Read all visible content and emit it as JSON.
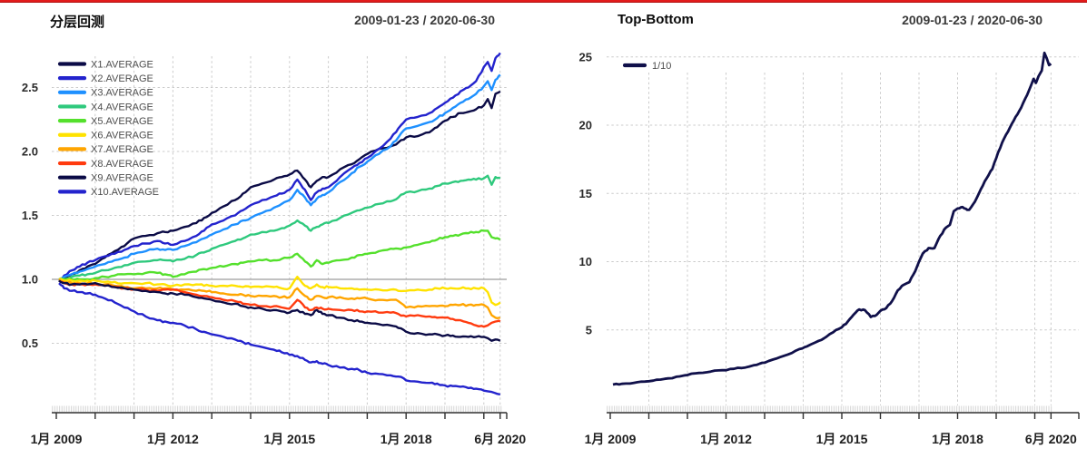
{
  "page": {
    "top_border_color": "#e31b1b",
    "background": "#ffffff",
    "grid_color": "#cbcbcb",
    "axis_color": "#2f2f2f"
  },
  "chart_data": [
    {
      "type": "line",
      "title": "分层回测",
      "date_range": "2009-01-23 / 2020-06-30",
      "legend_position": "top-left",
      "grid": true,
      "x_range_years": [
        2009.06,
        2020.5
      ],
      "x_end": 2020.42,
      "ylim": [
        0.05,
        2.78
      ],
      "baseline": {
        "value": 1.0,
        "color": "#9c9c9c"
      },
      "x_grid_years": [
        2010,
        2011,
        2012,
        2013,
        2014,
        2015,
        2016,
        2017,
        2018,
        2019,
        2020,
        2020.42
      ],
      "x_tick_labels": [
        {
          "label": "1月 2009",
          "year": 2009
        },
        {
          "label": "1月 2012",
          "year": 2012
        },
        {
          "label": "1月 2015",
          "year": 2015
        },
        {
          "label": "1月 2018",
          "year": 2018
        },
        {
          "label": "6月 2020",
          "year": 2020.42
        }
      ],
      "y_ticks": [
        {
          "value": 0.5,
          "label": "0.5"
        },
        {
          "value": 1.0,
          "label": "1.0"
        },
        {
          "value": 1.5,
          "label": "1.5"
        },
        {
          "value": 2.0,
          "label": "2.0"
        },
        {
          "value": 2.5,
          "label": "2.5"
        }
      ],
      "x": [
        2009.07,
        2009.2,
        2009.4,
        2009.6,
        2009.8,
        2010.0,
        2010.25,
        2010.5,
        2010.75,
        2011.0,
        2011.3,
        2011.6,
        2011.8,
        2012.0,
        2012.3,
        2012.6,
        2012.8,
        2013.0,
        2013.3,
        2013.6,
        2013.8,
        2014.0,
        2014.3,
        2014.6,
        2014.8,
        2015.0,
        2015.2,
        2015.4,
        2015.55,
        2015.7,
        2015.85,
        2016.0,
        2016.3,
        2016.6,
        2016.8,
        2017.0,
        2017.3,
        2017.6,
        2017.8,
        2018.0,
        2018.3,
        2018.6,
        2018.8,
        2019.0,
        2019.2,
        2019.4,
        2019.6,
        2019.8,
        2020.0,
        2020.1,
        2020.2,
        2020.3,
        2020.42
      ],
      "series": [
        {
          "name": "X1.AVERAGE",
          "color": "#0b0b46",
          "y": [
            1.0,
            1.01,
            1.04,
            1.07,
            1.1,
            1.12,
            1.17,
            1.22,
            1.26,
            1.32,
            1.34,
            1.36,
            1.37,
            1.38,
            1.41,
            1.44,
            1.48,
            1.52,
            1.57,
            1.62,
            1.67,
            1.72,
            1.75,
            1.78,
            1.8,
            1.82,
            1.85,
            1.78,
            1.72,
            1.77,
            1.8,
            1.8,
            1.86,
            1.9,
            1.94,
            1.98,
            2.02,
            2.04,
            2.07,
            2.11,
            2.12,
            2.15,
            2.19,
            2.24,
            2.27,
            2.3,
            2.31,
            2.33,
            2.36,
            2.41,
            2.34,
            2.45,
            2.47
          ]
        },
        {
          "name": "X2.AVERAGE",
          "color": "#2323cd",
          "y": [
            0.98,
            1.03,
            1.07,
            1.1,
            1.13,
            1.15,
            1.18,
            1.2,
            1.23,
            1.26,
            1.28,
            1.3,
            1.28,
            1.27,
            1.3,
            1.34,
            1.38,
            1.43,
            1.46,
            1.5,
            1.54,
            1.58,
            1.62,
            1.65,
            1.67,
            1.7,
            1.78,
            1.7,
            1.62,
            1.68,
            1.71,
            1.72,
            1.8,
            1.87,
            1.91,
            1.95,
            2.02,
            2.1,
            2.18,
            2.25,
            2.27,
            2.3,
            2.34,
            2.38,
            2.42,
            2.47,
            2.5,
            2.55,
            2.66,
            2.7,
            2.63,
            2.73,
            2.77
          ]
        },
        {
          "name": "X3.AVERAGE",
          "color": "#1e90ff",
          "y": [
            0.98,
            1.02,
            1.04,
            1.06,
            1.08,
            1.1,
            1.12,
            1.15,
            1.17,
            1.2,
            1.22,
            1.24,
            1.23,
            1.23,
            1.26,
            1.29,
            1.32,
            1.35,
            1.39,
            1.43,
            1.46,
            1.48,
            1.52,
            1.56,
            1.59,
            1.62,
            1.7,
            1.64,
            1.58,
            1.63,
            1.66,
            1.68,
            1.76,
            1.83,
            1.88,
            1.92,
            1.98,
            2.04,
            2.11,
            2.18,
            2.2,
            2.23,
            2.26,
            2.3,
            2.34,
            2.38,
            2.41,
            2.45,
            2.51,
            2.55,
            2.48,
            2.56,
            2.6
          ]
        },
        {
          "name": "X4.AVERAGE",
          "color": "#2fc97d",
          "y": [
            1.0,
            1.0,
            1.02,
            1.03,
            1.04,
            1.05,
            1.07,
            1.09,
            1.11,
            1.13,
            1.14,
            1.15,
            1.15,
            1.14,
            1.16,
            1.19,
            1.21,
            1.24,
            1.27,
            1.3,
            1.32,
            1.35,
            1.37,
            1.38,
            1.4,
            1.42,
            1.46,
            1.42,
            1.38,
            1.41,
            1.43,
            1.44,
            1.48,
            1.52,
            1.54,
            1.56,
            1.59,
            1.61,
            1.64,
            1.68,
            1.69,
            1.71,
            1.73,
            1.75,
            1.76,
            1.77,
            1.78,
            1.78,
            1.79,
            1.81,
            1.74,
            1.8,
            1.79
          ]
        },
        {
          "name": "X5.AVERAGE",
          "color": "#54e02c",
          "y": [
            1.0,
            1.0,
            1.0,
            1.0,
            1.0,
            1.01,
            1.02,
            1.03,
            1.04,
            1.04,
            1.05,
            1.05,
            1.04,
            1.02,
            1.04,
            1.06,
            1.08,
            1.09,
            1.1,
            1.12,
            1.13,
            1.14,
            1.15,
            1.15,
            1.16,
            1.17,
            1.2,
            1.14,
            1.1,
            1.15,
            1.12,
            1.13,
            1.15,
            1.17,
            1.19,
            1.2,
            1.22,
            1.24,
            1.24,
            1.25,
            1.27,
            1.29,
            1.31,
            1.33,
            1.34,
            1.35,
            1.36,
            1.37,
            1.38,
            1.38,
            1.33,
            1.32,
            1.31
          ]
        },
        {
          "name": "X6.AVERAGE",
          "color": "#ffe200",
          "y": [
            1.0,
            0.99,
            0.99,
            0.99,
            0.99,
            0.99,
            0.98,
            0.98,
            0.97,
            0.97,
            0.97,
            0.96,
            0.96,
            0.95,
            0.96,
            0.96,
            0.95,
            0.95,
            0.95,
            0.95,
            0.94,
            0.94,
            0.94,
            0.94,
            0.93,
            0.93,
            1.02,
            0.95,
            0.93,
            0.96,
            0.94,
            0.94,
            0.93,
            0.93,
            0.92,
            0.92,
            0.92,
            0.92,
            0.91,
            0.91,
            0.92,
            0.92,
            0.93,
            0.93,
            0.93,
            0.93,
            0.93,
            0.93,
            0.93,
            0.9,
            0.82,
            0.8,
            0.82
          ]
        },
        {
          "name": "X7.AVERAGE",
          "color": "#ffa500",
          "y": [
            1.0,
            0.98,
            0.97,
            0.97,
            0.97,
            0.97,
            0.96,
            0.95,
            0.94,
            0.93,
            0.93,
            0.93,
            0.93,
            0.92,
            0.92,
            0.91,
            0.91,
            0.9,
            0.89,
            0.88,
            0.88,
            0.87,
            0.87,
            0.87,
            0.86,
            0.86,
            0.93,
            0.87,
            0.84,
            0.87,
            0.86,
            0.86,
            0.86,
            0.85,
            0.85,
            0.85,
            0.84,
            0.84,
            0.83,
            0.78,
            0.79,
            0.79,
            0.79,
            0.79,
            0.8,
            0.8,
            0.8,
            0.8,
            0.8,
            0.78,
            0.72,
            0.7,
            0.7
          ]
        },
        {
          "name": "X8.AVERAGE",
          "color": "#ff3b0f",
          "y": [
            0.99,
            0.97,
            0.96,
            0.96,
            0.96,
            0.96,
            0.95,
            0.94,
            0.93,
            0.92,
            0.92,
            0.91,
            0.92,
            0.92,
            0.9,
            0.88,
            0.87,
            0.86,
            0.84,
            0.83,
            0.81,
            0.8,
            0.79,
            0.79,
            0.78,
            0.77,
            0.84,
            0.78,
            0.76,
            0.78,
            0.77,
            0.77,
            0.76,
            0.76,
            0.75,
            0.75,
            0.74,
            0.74,
            0.73,
            0.71,
            0.72,
            0.71,
            0.7,
            0.7,
            0.69,
            0.68,
            0.66,
            0.64,
            0.63,
            0.64,
            0.66,
            0.67,
            0.67
          ]
        },
        {
          "name": "X9.AVERAGE",
          "color": "#0b0b46",
          "y": [
            0.99,
            0.97,
            0.96,
            0.96,
            0.96,
            0.97,
            0.95,
            0.94,
            0.93,
            0.92,
            0.91,
            0.9,
            0.89,
            0.89,
            0.88,
            0.86,
            0.85,
            0.84,
            0.82,
            0.81,
            0.79,
            0.78,
            0.77,
            0.76,
            0.75,
            0.74,
            0.76,
            0.73,
            0.72,
            0.76,
            0.73,
            0.72,
            0.7,
            0.68,
            0.67,
            0.66,
            0.65,
            0.64,
            0.62,
            0.59,
            0.58,
            0.57,
            0.57,
            0.56,
            0.56,
            0.55,
            0.55,
            0.55,
            0.55,
            0.54,
            0.52,
            0.53,
            0.52
          ]
        },
        {
          "name": "X10.AVERAGE",
          "color": "#2323cd",
          "y": [
            0.97,
            0.93,
            0.91,
            0.9,
            0.89,
            0.88,
            0.85,
            0.82,
            0.78,
            0.75,
            0.71,
            0.68,
            0.67,
            0.66,
            0.64,
            0.61,
            0.59,
            0.57,
            0.55,
            0.53,
            0.51,
            0.49,
            0.47,
            0.45,
            0.43,
            0.41,
            0.4,
            0.37,
            0.35,
            0.36,
            0.34,
            0.33,
            0.31,
            0.3,
            0.29,
            0.27,
            0.26,
            0.25,
            0.24,
            0.21,
            0.2,
            0.19,
            0.185,
            0.17,
            0.165,
            0.16,
            0.15,
            0.145,
            0.13,
            0.125,
            0.12,
            0.11,
            0.1
          ]
        }
      ]
    },
    {
      "type": "line",
      "title": "Top-Bottom",
      "date_range": "2009-01-23 / 2020-06-30",
      "legend_position": "top-left",
      "grid": true,
      "x_range_years": [
        2009.06,
        2020.5
      ],
      "x_end": 2020.42,
      "ylim": [
        1,
        25.5
      ],
      "x_grid_years": [
        2010,
        2011,
        2012,
        2013,
        2014,
        2015,
        2016,
        2017,
        2018,
        2019,
        2020,
        2020.42
      ],
      "x_tick_labels": [
        {
          "label": "1月 2009",
          "year": 2009
        },
        {
          "label": "1月 2012",
          "year": 2012
        },
        {
          "label": "1月 2015",
          "year": 2015
        },
        {
          "label": "1月 2018",
          "year": 2018
        },
        {
          "label": "6月 2020",
          "year": 2020.42
        }
      ],
      "y_ticks": [
        {
          "value": 5,
          "label": "5"
        },
        {
          "value": 10,
          "label": "10"
        },
        {
          "value": 15,
          "label": "15"
        },
        {
          "value": 20,
          "label": "20"
        },
        {
          "value": 25,
          "label": "25"
        }
      ],
      "x": [
        2009.07,
        2009.3,
        2009.6,
        2009.9,
        2010.2,
        2010.5,
        2010.8,
        2011.0,
        2011.3,
        2011.6,
        2011.9,
        2012.2,
        2012.5,
        2012.8,
        2013.0,
        2013.3,
        2013.6,
        2013.9,
        2014.1,
        2014.4,
        2014.6,
        2014.85,
        2015.0,
        2015.15,
        2015.3,
        2015.45,
        2015.6,
        2015.75,
        2015.9,
        2016.0,
        2016.15,
        2016.3,
        2016.45,
        2016.6,
        2016.75,
        2016.9,
        2017.0,
        2017.1,
        2017.25,
        2017.4,
        2017.55,
        2017.7,
        2017.8,
        2017.9,
        2018.0,
        2018.13,
        2018.25,
        2018.3,
        2018.45,
        2018.6,
        2018.75,
        2018.9,
        2019.05,
        2019.2,
        2019.35,
        2019.5,
        2019.65,
        2019.8,
        2019.9,
        2019.97,
        2020.03,
        2020.1,
        2020.18,
        2020.25,
        2020.31,
        2020.37,
        2020.42
      ],
      "series": [
        {
          "name": "1/10",
          "color": "#10104a",
          "y": [
            1.0,
            1.05,
            1.12,
            1.22,
            1.35,
            1.45,
            1.6,
            1.7,
            1.85,
            1.95,
            2.05,
            2.15,
            2.25,
            2.45,
            2.6,
            2.9,
            3.2,
            3.6,
            3.8,
            4.2,
            4.5,
            5.0,
            5.2,
            5.6,
            6.1,
            6.5,
            6.45,
            5.95,
            6.1,
            6.4,
            6.6,
            7.1,
            7.9,
            8.3,
            8.5,
            9.3,
            10.0,
            10.6,
            11.0,
            11.0,
            11.9,
            12.5,
            12.7,
            13.7,
            13.9,
            14.0,
            13.8,
            13.8,
            14.4,
            15.3,
            16.1,
            16.8,
            18.0,
            19.0,
            19.8,
            20.6,
            21.3,
            22.2,
            22.9,
            23.4,
            23.1,
            23.6,
            24.0,
            25.3,
            24.9,
            24.4,
            24.5
          ]
        }
      ]
    }
  ]
}
